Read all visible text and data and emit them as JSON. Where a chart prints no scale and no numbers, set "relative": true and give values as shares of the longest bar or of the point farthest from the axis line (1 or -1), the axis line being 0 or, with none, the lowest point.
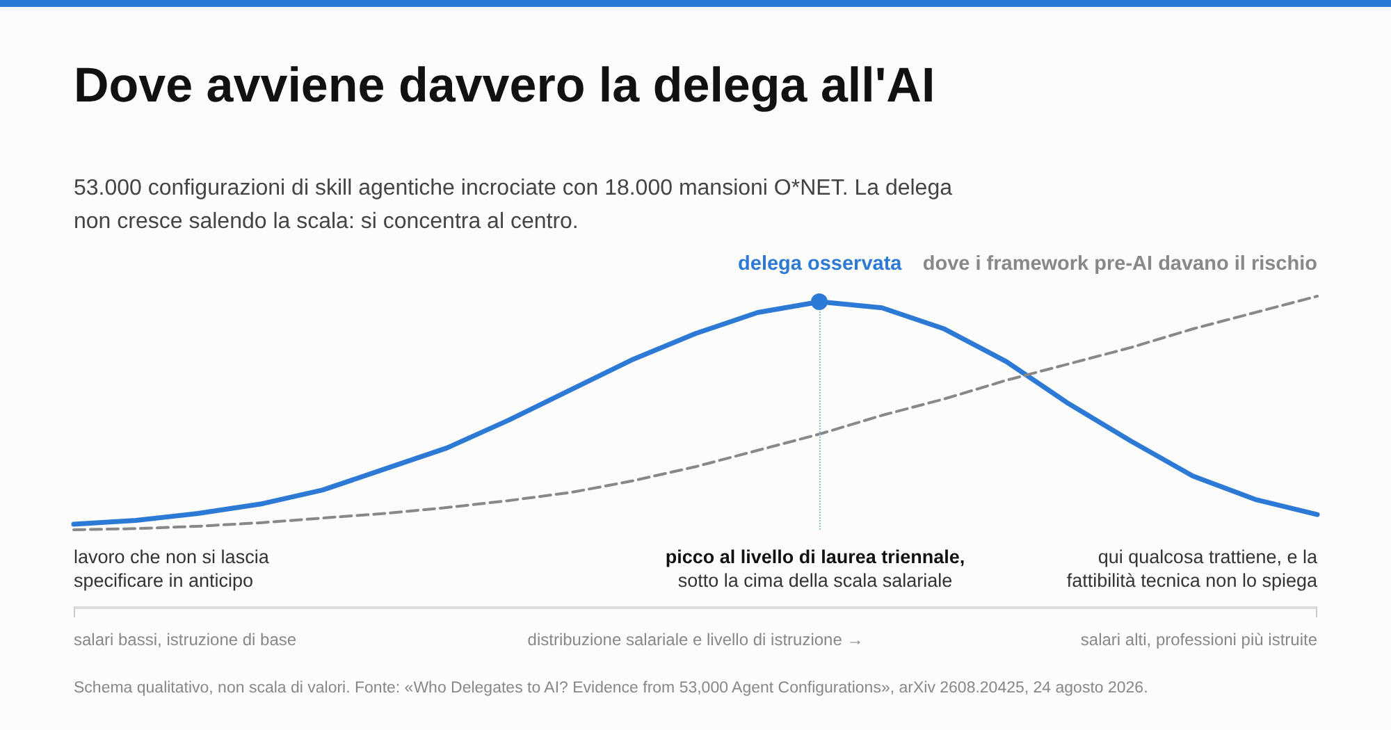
{
  "chart_data": {
    "type": "line",
    "relative": true,
    "title": "Dove avviene davvero la delega all'AI",
    "subtitle": "53.000 configurazioni di skill agentiche incrociate con 18.000 mansioni O*NET. La delega\nnon cresce salendo la scala: si concentra al centro.",
    "categories": [
      null,
      null,
      null,
      null,
      null,
      null,
      null,
      null,
      null,
      null,
      null,
      null,
      null,
      null,
      null,
      null,
      null,
      null,
      null,
      null,
      null
    ],
    "series": [
      {
        "name": "delega osservata",
        "color": "#2d7ad6",
        "line_style": "solid",
        "marker": "none",
        "values": [
          0.024,
          0.04,
          0.07,
          0.11,
          0.17,
          0.26,
          0.35,
          0.47,
          0.6,
          0.73,
          0.84,
          0.93,
          0.976,
          0.95,
          0.86,
          0.72,
          0.54,
          0.38,
          0.23,
          0.13,
          0.065
        ]
      },
      {
        "name": "dove i framework pre-AI davano il rischio",
        "color": "#888888",
        "line_style": "dashed",
        "marker": "none",
        "values": [
          0,
          0.005,
          0.015,
          0.03,
          0.05,
          0.07,
          0.095,
          0.125,
          0.16,
          0.21,
          0.27,
          0.34,
          0.41,
          0.49,
          0.56,
          0.64,
          0.71,
          0.78,
          0.86,
          0.93,
          1
        ]
      }
    ],
    "annotations": [
      "lavoro che non si lascia\nspecificare in anticipo",
      "picco al livello di laurea triennale,\nsotto la cima della scala salariale",
      "qui qualcosa trattiene, e la\nfattibilità tecnica non lo spiega",
      "salari bassi, istruzione di base",
      "salari alti, professioni più istruite",
      "Schema qualitativo, non scala di valori. Fonte: «Who Delegates to AI? Evidence from 53,000 Agent Configurations», arXiv 2608.20425, 24 agosto 2026.",
      "distribuzione salariale e livello di istruzione →"
    ],
    "grid": false,
    "legend": false
  }
}
